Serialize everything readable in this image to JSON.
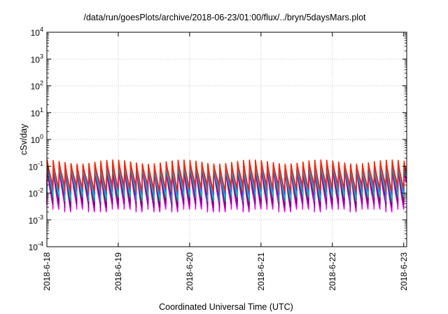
{
  "chart_data": {
    "type": "line",
    "title": "/data/run/goesPlots/archive/2018-06-23/01:00/flux/../bryn/5daysMars.plot",
    "xlabel": "Coordinated Universal Time (UTC)",
    "ylabel": "cSv/day",
    "yscale": "log",
    "ylim": [
      0.0001,
      10000
    ],
    "xlim": [
      "2018-06-18T00:00",
      "2018-06-23T01:00"
    ],
    "grid": true,
    "ytick_labels": [
      {
        "base": "10",
        "exp": "-4"
      },
      {
        "base": "10",
        "exp": "-3"
      },
      {
        "base": "10",
        "exp": "-2"
      },
      {
        "base": "10",
        "exp": "-1"
      },
      {
        "base": "10",
        "exp": "0"
      },
      {
        "base": "10",
        "exp": "1"
      },
      {
        "base": "10",
        "exp": "2"
      },
      {
        "base": "10",
        "exp": "3"
      },
      {
        "base": "10",
        "exp": "4"
      }
    ],
    "xtick_labels": [
      "2018-6-18",
      "2018-6-19",
      "2018-6-20",
      "2018-6-21",
      "2018-6-22",
      "2018-6-23"
    ],
    "cycle_hours": 2.0,
    "series": [
      {
        "color": "#ff00ff",
        "peak_values": [
          0.085,
          0.04,
          0.02,
          0.008,
          0.0055
        ],
        "min_values": [
          0.0035,
          0.0025,
          0.002
        ]
      },
      {
        "color": "#cc00cc",
        "peak_values": [
          0.09,
          0.045,
          0.022,
          0.0095,
          0.006
        ],
        "min_values": [
          0.004,
          0.003,
          0.0023
        ]
      },
      {
        "color": "#7f007f",
        "peak_values": [
          0.1,
          0.05,
          0.025,
          0.012,
          0.008
        ],
        "min_values": [
          0.006,
          0.004,
          0.003
        ]
      },
      {
        "color": "#00aa88",
        "peak_values": [
          0.11,
          0.06,
          0.032,
          0.018,
          0.012
        ],
        "min_values": [
          0.009,
          0.007,
          0.005
        ]
      },
      {
        "color": "#00c8c8",
        "peak_values": [
          0.12,
          0.07,
          0.04,
          0.025,
          0.017
        ],
        "min_values": [
          0.012,
          0.009,
          0.007
        ]
      },
      {
        "color": "#3366ff",
        "peak_values": [
          0.13,
          0.08,
          0.05,
          0.03,
          0.02
        ],
        "min_values": [
          0.015,
          0.012,
          0.009
        ]
      },
      {
        "color": "#ff2200",
        "peak_values": [
          0.15,
          0.1,
          0.06,
          0.04,
          0.025
        ],
        "min_values": [
          0.02,
          0.015,
          0.012
        ]
      }
    ]
  }
}
